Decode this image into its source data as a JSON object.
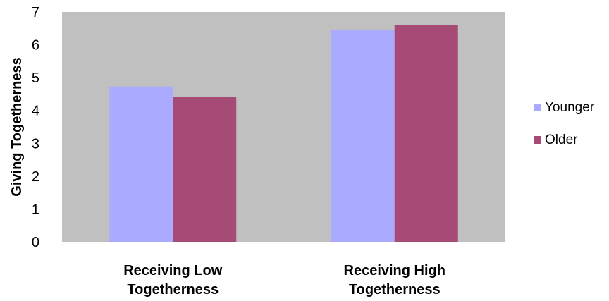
{
  "chart_data": {
    "type": "bar",
    "title": "",
    "xlabel": "",
    "ylabel": "Giving Togetherness",
    "ylim": [
      0,
      7
    ],
    "yticks": [
      0,
      1,
      2,
      3,
      4,
      5,
      6,
      7
    ],
    "grid": false,
    "legend_position": "right",
    "categories": [
      [
        "Receiving Low",
        "Togetherness"
      ],
      [
        "Receiving High",
        "Togetherness"
      ]
    ],
    "series": [
      {
        "name": "Younger",
        "color": "#aaaaff",
        "values": [
          4.73,
          6.45
        ]
      },
      {
        "name": "Older",
        "color": "#a64b76",
        "values": [
          4.42,
          6.6
        ]
      }
    ],
    "plot_background": "#c0c0c0"
  }
}
